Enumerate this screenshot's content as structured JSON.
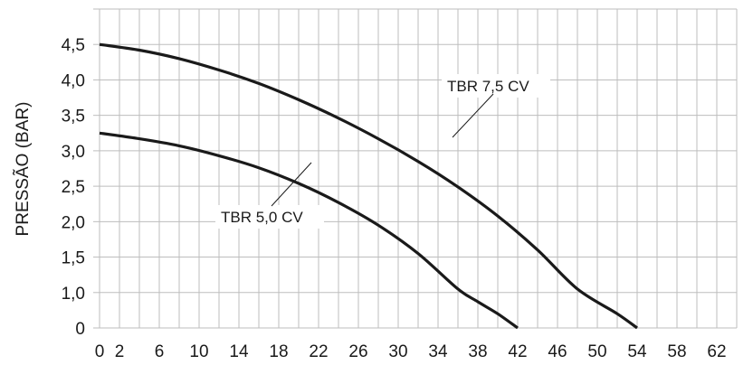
{
  "chart_data": {
    "type": "line",
    "ylabel": "PRESSÃO (BAR)",
    "xlabel": "",
    "x_ticks": [
      "0",
      "2",
      "6",
      "10",
      "14",
      "18",
      "22",
      "26",
      "30",
      "34",
      "38",
      "42",
      "46",
      "50",
      "54",
      "58",
      "62"
    ],
    "y_ticks": [
      "0",
      "1,0",
      "1,5",
      "2,0",
      "2,5",
      "3,0",
      "3,5",
      "4,0",
      "4,5"
    ],
    "grid": true,
    "series": [
      {
        "name": "TBR 7,5 CV",
        "x": [
          0,
          4,
          8,
          12,
          16,
          20,
          24,
          28,
          32,
          36,
          40,
          44,
          48,
          52,
          54
        ],
        "y": [
          4.5,
          4.42,
          4.3,
          4.14,
          3.95,
          3.72,
          3.46,
          3.17,
          2.85,
          2.49,
          2.08,
          1.6,
          1.05,
          0.4,
          0
        ]
      },
      {
        "name": "TBR 5,0 CV",
        "x": [
          0,
          4,
          8,
          12,
          16,
          20,
          24,
          28,
          32,
          36,
          38,
          40,
          42
        ],
        "y": [
          3.25,
          3.17,
          3.07,
          2.93,
          2.76,
          2.54,
          2.27,
          1.95,
          1.55,
          1.05,
          0.74,
          0.4,
          0
        ]
      }
    ]
  }
}
